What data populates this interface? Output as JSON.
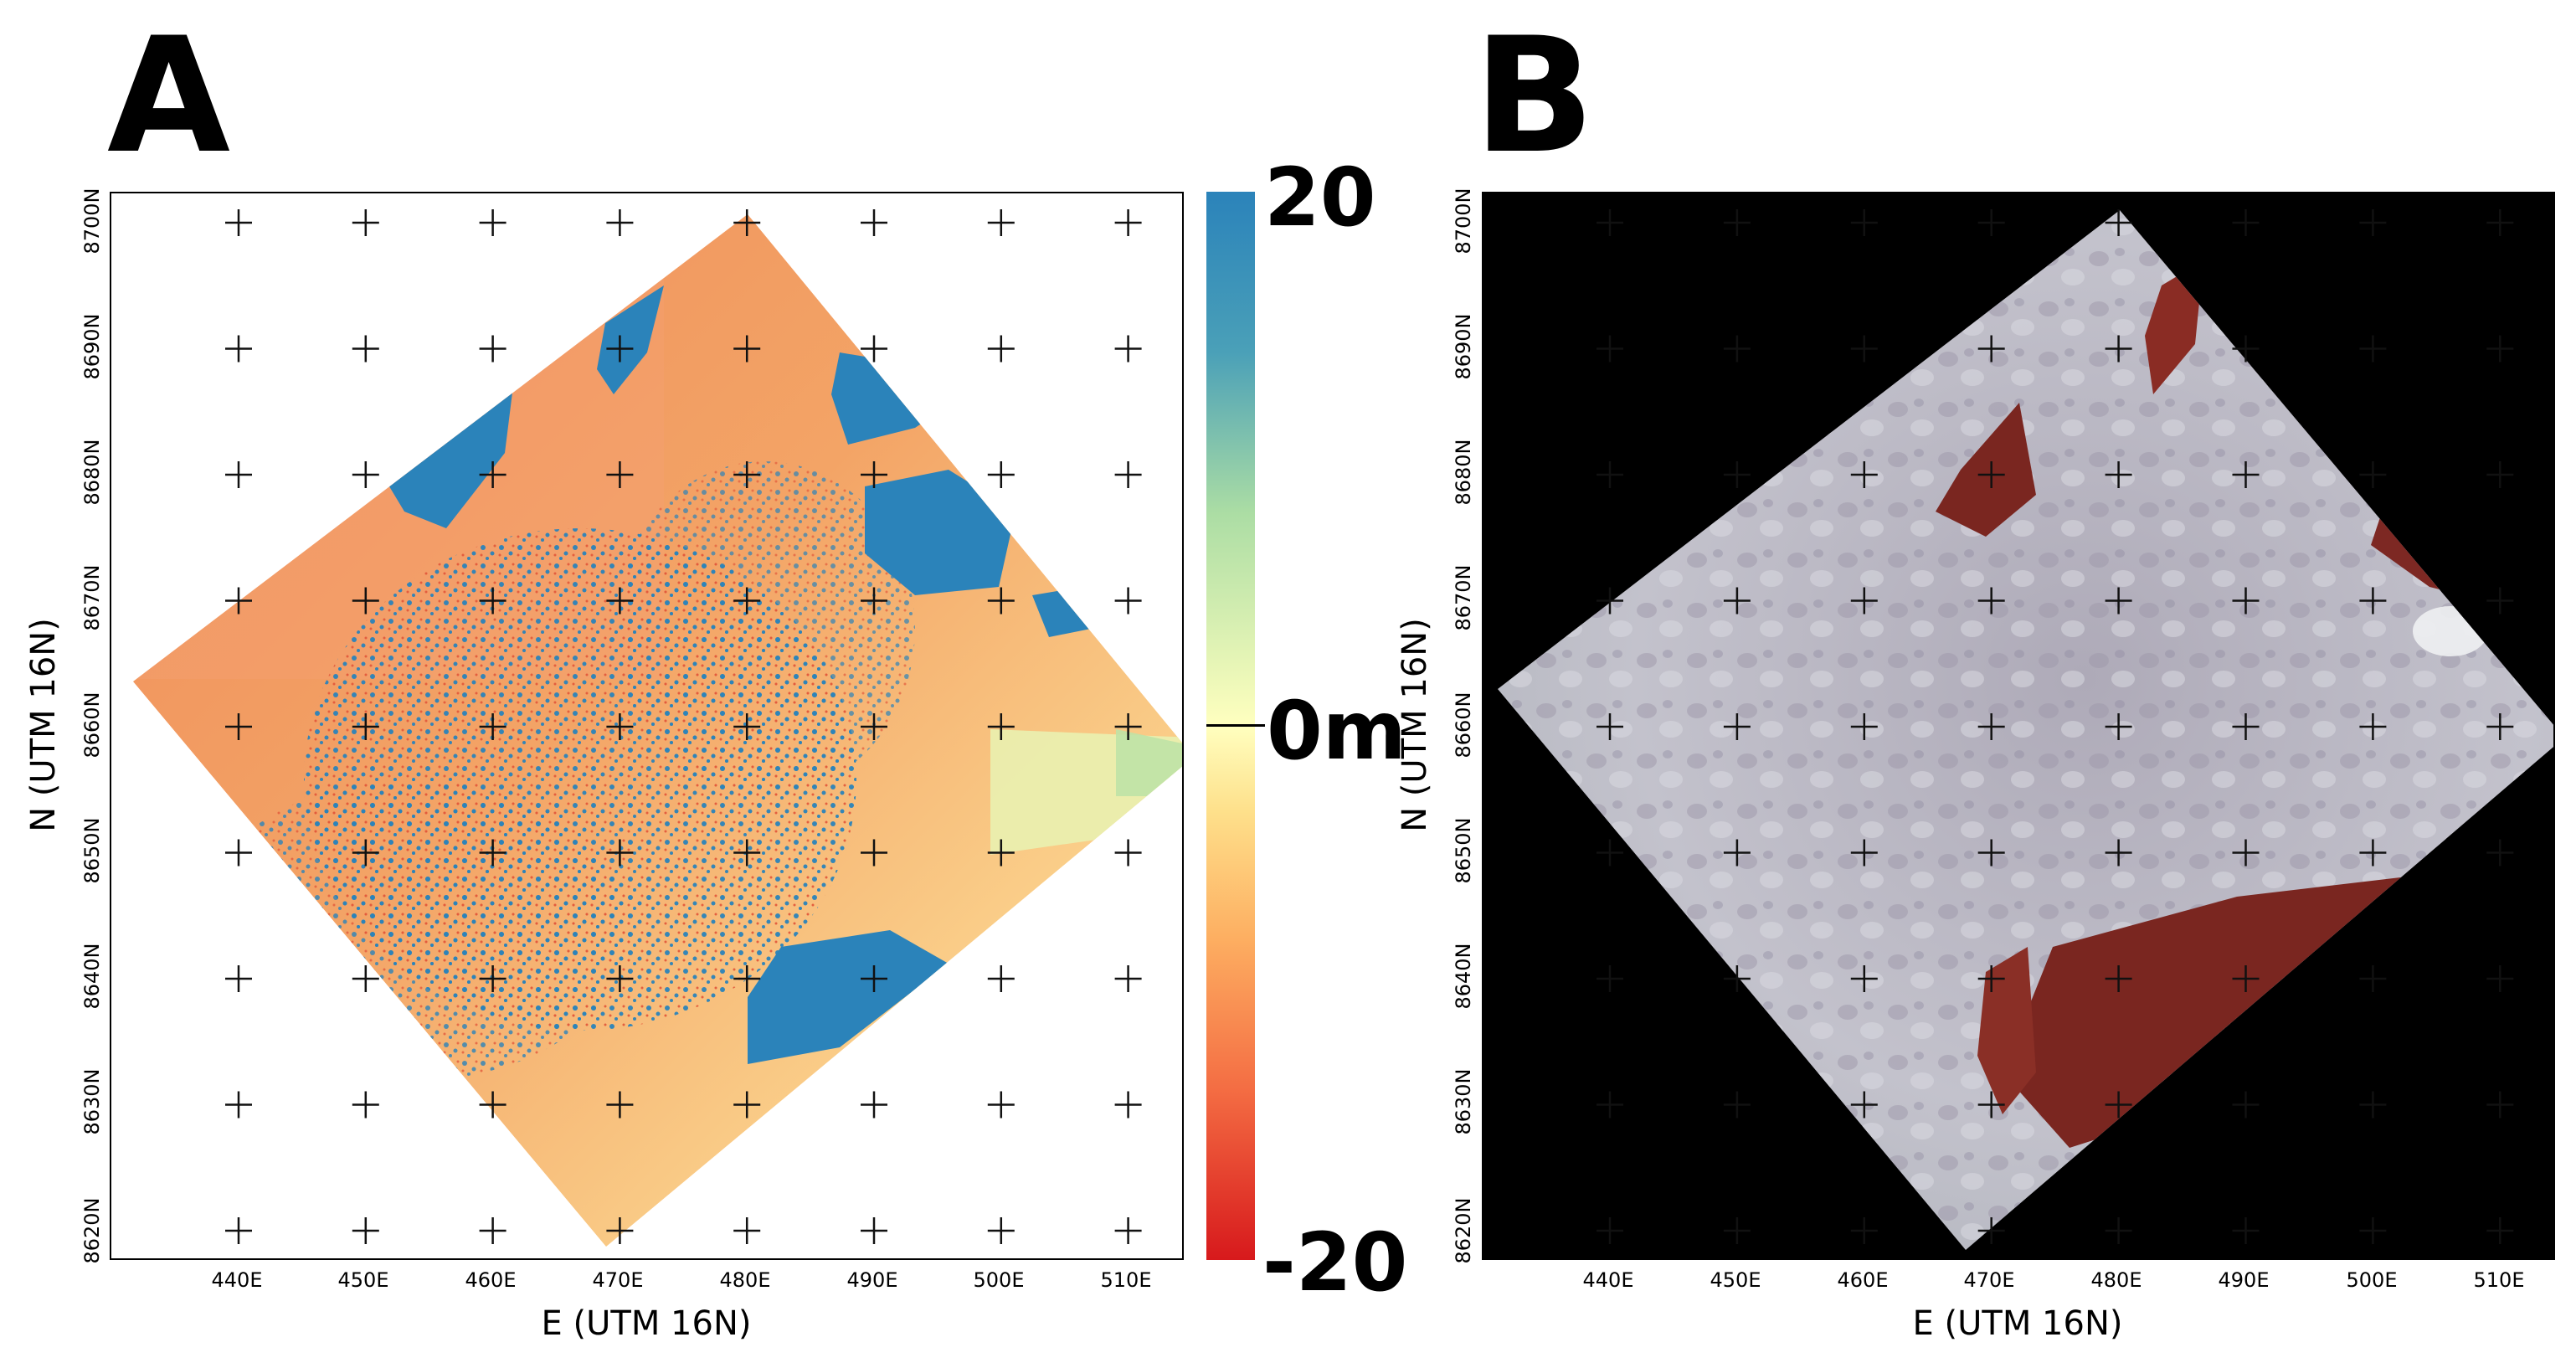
{
  "panel_a": {
    "letter": "A",
    "x_ticks": [
      "440E",
      "450E",
      "460E",
      "470E",
      "480E",
      "490E",
      "500E",
      "510E"
    ],
    "y_ticks": [
      "8700N",
      "8690N",
      "8680N",
      "8670N",
      "8660N",
      "8650N",
      "8640N",
      "8630N",
      "8620N"
    ],
    "x_title": "E (UTM 16N)",
    "y_title": "N (UTM 16N)",
    "colorbar": {
      "max_label": "20",
      "mid_label": "0m",
      "min_label": "-20",
      "colors": [
        "#2b83ba",
        "#abdda4",
        "#ffffbf",
        "#fdae61",
        "#d7191c"
      ]
    }
  },
  "panel_b": {
    "letter": "B",
    "x_ticks": [
      "440E",
      "450E",
      "460E",
      "470E",
      "480E",
      "490E",
      "500E",
      "510E"
    ],
    "y_ticks": [
      "8700N",
      "8690N",
      "8680N",
      "8670N",
      "8660N",
      "8650N",
      "8640N",
      "8630N",
      "8620N"
    ],
    "x_title": "E (UTM 16N)",
    "y_title": "N (UTM 16N)"
  }
}
